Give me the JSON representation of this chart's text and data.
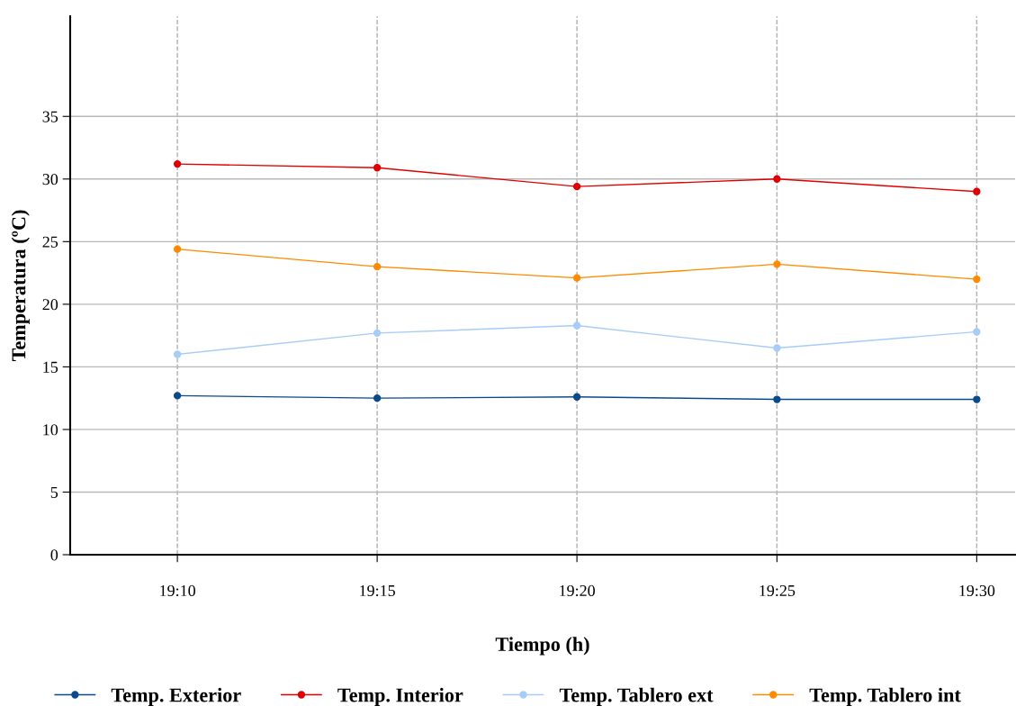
{
  "chart_data": {
    "type": "line",
    "xlabel": "Tiempo (h)",
    "ylabel": "Temperatura (ºC)",
    "x": [
      19.1667,
      19.25,
      19.3333,
      19.4167,
      19.5
    ],
    "xlim": [
      19.122,
      19.516
    ],
    "xticks": [
      {
        "value": 19.1667,
        "label": "19:10"
      },
      {
        "value": 19.25,
        "label": "19:15"
      },
      {
        "value": 19.3333,
        "label": "19:20"
      },
      {
        "value": 19.4167,
        "label": "19:25"
      },
      {
        "value": 19.5,
        "label": "19:30"
      }
    ],
    "ylim": [
      0,
      43
    ],
    "yticks": [
      0,
      5,
      10,
      15,
      20,
      25,
      30,
      35
    ],
    "grid": true,
    "legend": "bottom",
    "marker": "circle",
    "line_style": "solid",
    "series": [
      {
        "name": "Temp. Exterior",
        "color": "#0b4a8b",
        "values": [
          12.7,
          12.5,
          12.6,
          12.4,
          12.4
        ]
      },
      {
        "name": "Temp. Interior",
        "color": "#e00000",
        "values": [
          31.2,
          30.9,
          29.4,
          30.0,
          29.0
        ]
      },
      {
        "name": "Temp. Tablero ext",
        "color": "#a6cdf7",
        "values": [
          16.0,
          17.7,
          18.3,
          16.5,
          17.8
        ]
      },
      {
        "name": "Temp. Tablero int",
        "color": "#ff8a00",
        "values": [
          24.4,
          23.0,
          22.1,
          23.2,
          22.0
        ]
      }
    ]
  }
}
